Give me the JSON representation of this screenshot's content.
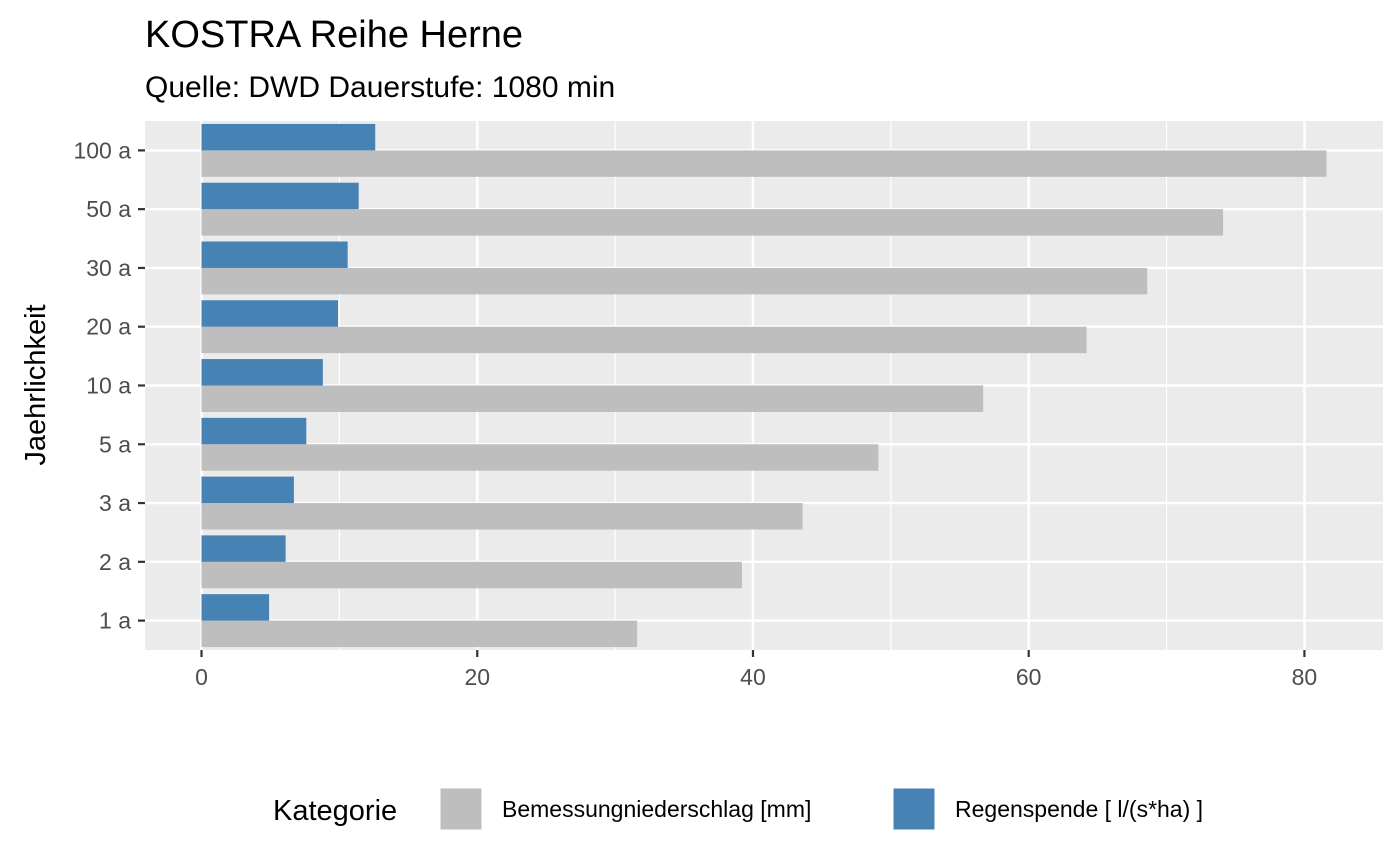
{
  "chart_data": {
    "type": "bar",
    "orientation": "horizontal",
    "title": "KOSTRA Reihe Herne",
    "subtitle": "Quelle: DWD Dauerstufe: 1080 min",
    "xlabel": "",
    "ylabel": "Jaehrlichkeit",
    "categories": [
      "1 a",
      "2 a",
      "3 a",
      "5 a",
      "10 a",
      "20 a",
      "30 a",
      "50 a",
      "100 a"
    ],
    "series": [
      {
        "name": "Bemessungniederschlag [mm]",
        "color": "#bebebe",
        "values": [
          31.6,
          39.2,
          43.6,
          49.1,
          56.7,
          64.2,
          68.6,
          74.1,
          81.6
        ]
      },
      {
        "name": "Regenspende [ l/(s*ha) ]",
        "color": "#4682b4",
        "values": [
          4.9,
          6.1,
          6.7,
          7.6,
          8.8,
          9.9,
          10.6,
          11.4,
          12.6
        ]
      }
    ],
    "xlim": [
      -4.1,
      85.7
    ],
    "xticks": [
      0,
      20,
      40,
      60,
      80
    ],
    "grid": true,
    "legend": {
      "title": "Kategorie",
      "position": "bottom"
    },
    "colors": {
      "panel_background": "#ebebeb",
      "grid": "#ffffff"
    }
  }
}
